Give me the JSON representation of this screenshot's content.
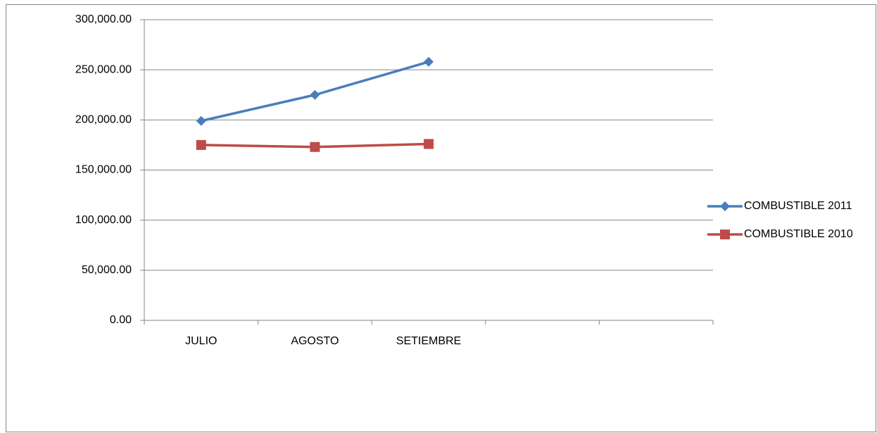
{
  "chart_data": {
    "type": "line",
    "categories": [
      "JULIO",
      "AGOSTO",
      "SETIEMBRE",
      null,
      null
    ],
    "series": [
      {
        "name": "COMBUSTIBLE 2011",
        "color": "#4a7ebb",
        "marker": "diamond",
        "values": [
          199000,
          225000,
          258000,
          null,
          null
        ]
      },
      {
        "name": "COMBUSTIBLE 2010",
        "color": "#be4b48",
        "marker": "square",
        "values": [
          175000,
          173000,
          176000,
          null,
          null
        ]
      }
    ],
    "ylim": [
      0,
      300000
    ],
    "yticks": [
      {
        "value": 0,
        "label": "0.00"
      },
      {
        "value": 50000,
        "label": "50,000.00"
      },
      {
        "value": 100000,
        "label": "100,000.00"
      },
      {
        "value": 150000,
        "label": "150,000.00"
      },
      {
        "value": 200000,
        "label": "200,000.00"
      },
      {
        "value": 250000,
        "label": "250,000.00"
      },
      {
        "value": 300000,
        "label": "300,000.00"
      }
    ],
    "grid": true,
    "legend": "right"
  }
}
